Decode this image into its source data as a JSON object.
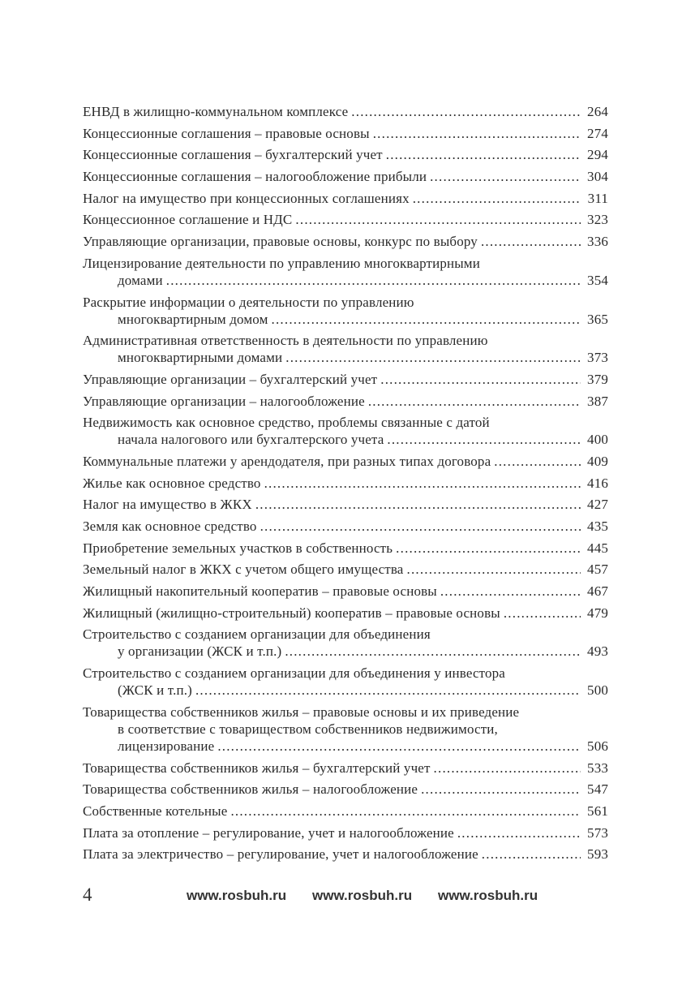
{
  "toc": [
    {
      "lines": [
        "ЕНВД в жилищно-коммунальном комплексе"
      ],
      "page": "264"
    },
    {
      "lines": [
        "Концессионные соглашения – правовые основы"
      ],
      "page": "274"
    },
    {
      "lines": [
        "Концессионные соглашения – бухгалтерский учет"
      ],
      "page": "294"
    },
    {
      "lines": [
        "Концессионные соглашения – налогообложение прибыли"
      ],
      "page": "304"
    },
    {
      "lines": [
        "Налог на имущество при концессионных соглашениях"
      ],
      "page": "311"
    },
    {
      "lines": [
        "Концессионное соглашение и НДС"
      ],
      "page": "323"
    },
    {
      "lines": [
        "Управляющие организации, правовые основы, конкурс по выбору"
      ],
      "page": "336"
    },
    {
      "lines": [
        "Лицензирование деятельности  по управлению многоквартирными",
        "домами"
      ],
      "page": "354"
    },
    {
      "lines": [
        "Раскрытие информации о деятельности  по управлению",
        "многоквартирным домом"
      ],
      "page": "365"
    },
    {
      "lines": [
        "Административная ответственность в деятельности по управлению",
        "многоквартирными домами"
      ],
      "page": "373"
    },
    {
      "lines": [
        "Управляющие организации – бухгалтерский учет"
      ],
      "page": "379"
    },
    {
      "lines": [
        "Управляющие организации – налогообложение"
      ],
      "page": "387"
    },
    {
      "lines": [
        "Недвижимость как основное средство, проблемы связанные с датой",
        "начала налогового или бухгалтерского учета"
      ],
      "page": "400"
    },
    {
      "lines": [
        "Коммунальные платежи у арендодателя, при разных типах договора"
      ],
      "page": "409"
    },
    {
      "lines": [
        "Жилье как основное средство"
      ],
      "page": "416"
    },
    {
      "lines": [
        "Налог на имущество в ЖКХ"
      ],
      "page": "427"
    },
    {
      "lines": [
        "Земля как основное средство"
      ],
      "page": "435"
    },
    {
      "lines": [
        "Приобретение земельных участков  в собственность"
      ],
      "page": "445"
    },
    {
      "lines": [
        "Земельный налог в ЖКХ с учетом общего имущества"
      ],
      "page": "457"
    },
    {
      "lines": [
        "Жилищный накопительный кооператив – правовые основы"
      ],
      "page": "467"
    },
    {
      "lines": [
        "Жилищный (жилищно-строительный) кооператив – правовые основы"
      ],
      "page": "479"
    },
    {
      "lines": [
        "Строительство с созданием организации для объединения",
        "у организации (ЖСК и т.п.)"
      ],
      "page": "493"
    },
    {
      "lines": [
        "Строительство с созданием организации для объединения у инвестора",
        "(ЖСК и т.п.)"
      ],
      "page": "500"
    },
    {
      "lines": [
        "Товарищества собственников жилья – правовые основы и их приведение",
        "в соответствие с товариществом собственников недвижимости,",
        "лицензирование"
      ],
      "page": "506"
    },
    {
      "lines": [
        "Товарищества собственников жилья – бухгалтерский учет"
      ],
      "page": "533"
    },
    {
      "lines": [
        "Товарищества собственников жилья – налогообложение"
      ],
      "page": "547"
    },
    {
      "lines": [
        "Собственные котельные"
      ],
      "page": "561"
    },
    {
      "lines": [
        "Плата за отопление – регулирование, учет  и налогообложение"
      ],
      "page": "573"
    },
    {
      "lines": [
        "Плата за электричество – регулирование, учет и налогообложение"
      ],
      "page": "593"
    }
  ],
  "footer": {
    "page_number": "4",
    "urls": [
      "www.rosbuh.ru",
      "www.rosbuh.ru",
      "www.rosbuh.ru"
    ]
  }
}
